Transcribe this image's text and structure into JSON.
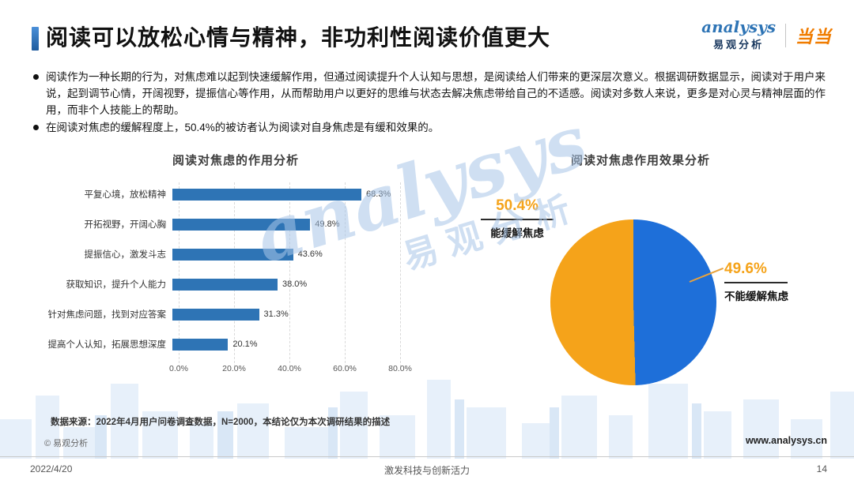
{
  "page": {
    "title": "阅读可以放松心情与精神，非功利性阅读价值更大",
    "date": "2022/4/20",
    "page_number": "14",
    "slogan": "激发科技与创新活力",
    "website": "www.analysys.cn",
    "copyright": "© 易观分析",
    "source_note": "数据来源：2022年4月用户问卷调查数据，N=2000，本结论仅为本次调研结果的描述"
  },
  "logos": {
    "analysys_script": "analysys",
    "analysys_cn": "易观分析",
    "partner": "当当"
  },
  "watermark": {
    "script": "analysys",
    "cn": "易观分析"
  },
  "bullets": [
    "阅读作为一种长期的行为，对焦虑难以起到快速缓解作用，但通过阅读提升个人认知与思想，是阅读给人们带来的更深层次意义。根据调研数据显示，阅读对于用户来说，起到调节心情，开阔视野，提振信心等作用，从而帮助用户以更好的思维与状态去解决焦虑带给自己的不适感。阅读对多数人来说，更多是对心灵与精神层面的作用，而非个人技能上的帮助。",
    "在阅读对焦虑的缓解程度上，50.4%的被访者认为阅读对自身焦虑是有缓和效果的。"
  ],
  "colors": {
    "accent_blue": "#2E74B5",
    "bar_blue": "#2E74B5",
    "pie_blue": "#1E6FD9",
    "pie_orange": "#F5A31A",
    "dangdang_orange": "#F07C00",
    "watermark_blue": "#A9C6E8"
  },
  "chart_data": [
    {
      "type": "bar",
      "orientation": "horizontal",
      "title": "阅读对焦虑的作用分析",
      "categories": [
        "平复心境，放松精神",
        "开拓视野，开阔心胸",
        "提振信心，激发斗志",
        "获取知识，提升个人能力",
        "针对焦虑问题，找到对应答案",
        "提高个人认知，拓展思想深度"
      ],
      "values": [
        68.3,
        49.8,
        43.6,
        38.0,
        31.3,
        20.1
      ],
      "value_labels": [
        "68.3%",
        "49.8%",
        "43.6%",
        "38.0%",
        "31.3%",
        "20.1%"
      ],
      "x_ticks": [
        "0.0%",
        "20.0%",
        "40.0%",
        "60.0%",
        "80.0%"
      ],
      "xlim": [
        0,
        80
      ],
      "grid": "vertical-dashed",
      "bar_color": "#2E74B5"
    },
    {
      "type": "pie",
      "title": "阅读对焦虑作用效果分析",
      "slices": [
        {
          "label": "能缓解焦虑",
          "value": 50.4,
          "value_label": "50.4%",
          "color": "#F5A31A"
        },
        {
          "label": "不能缓解焦虑",
          "value": 49.6,
          "value_label": "49.6%",
          "color": "#1E6FD9"
        }
      ],
      "legend_position": "callout-labels"
    }
  ]
}
